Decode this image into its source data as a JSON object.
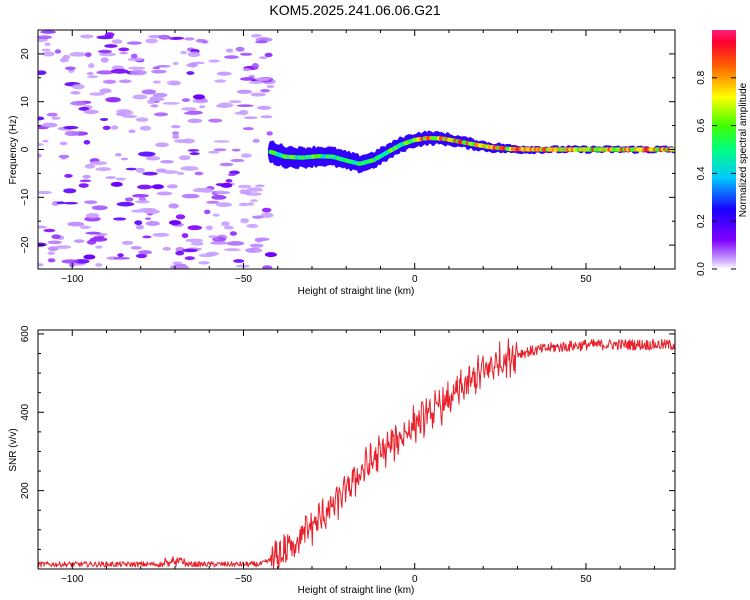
{
  "figure": {
    "title": "KOM5.2025.241.06.06.G21"
  },
  "chart_data": [
    {
      "type": "heatmap",
      "xlabel": "Height of straight line (km)",
      "ylabel": "Frequency (Hz)",
      "xlim": [
        -110,
        76
      ],
      "ylim": [
        -25,
        25
      ],
      "xticks": [
        -100,
        -50,
        0,
        50
      ],
      "yticks": [
        -20,
        -10,
        0,
        10,
        20
      ],
      "colorbar": {
        "label": "Normalized spectral amplitude",
        "ticks": [
          0.0,
          0.2,
          0.4,
          0.6,
          0.8
        ],
        "range": [
          0,
          1
        ]
      },
      "ridge": [
        {
          "x": -42,
          "y": -0.5
        },
        {
          "x": -38,
          "y": -1.5
        },
        {
          "x": -33,
          "y": -1.7
        },
        {
          "x": -28,
          "y": -1.4
        },
        {
          "x": -24,
          "y": -1.5
        },
        {
          "x": -20,
          "y": -2.3
        },
        {
          "x": -16,
          "y": -3.0
        },
        {
          "x": -12,
          "y": -2.2
        },
        {
          "x": -8,
          "y": -0.6
        },
        {
          "x": -4,
          "y": 1.0
        },
        {
          "x": 0,
          "y": 2.0
        },
        {
          "x": 4,
          "y": 2.4
        },
        {
          "x": 8,
          "y": 2.3
        },
        {
          "x": 12,
          "y": 1.8
        },
        {
          "x": 17,
          "y": 1.1
        },
        {
          "x": 22,
          "y": 0.5
        },
        {
          "x": 28,
          "y": 0.1
        },
        {
          "x": 35,
          "y": 0.0
        },
        {
          "x": 45,
          "y": 0.0
        },
        {
          "x": 60,
          "y": 0.0
        },
        {
          "x": 76,
          "y": 0.0
        }
      ]
    },
    {
      "type": "line",
      "xlabel": "Height of straight line (km)",
      "ylabel": "SNR (v/v)",
      "xlim": [
        -110,
        76
      ],
      "ylim": [
        0,
        610
      ],
      "xticks": [
        -100,
        -50,
        0,
        50
      ],
      "yticks": [
        200,
        400,
        600
      ],
      "series": [
        {
          "name": "SNR",
          "color": "#e8202a",
          "envelope": [
            {
              "x": -110,
              "y": 12
            },
            {
              "x": -70,
              "y": 12
            },
            {
              "x": -45,
              "y": 12
            },
            {
              "x": -40,
              "y": 30
            },
            {
              "x": -35,
              "y": 70
            },
            {
              "x": -30,
              "y": 110
            },
            {
              "x": -25,
              "y": 150
            },
            {
              "x": -20,
              "y": 200
            },
            {
              "x": -15,
              "y": 255
            },
            {
              "x": -10,
              "y": 295
            },
            {
              "x": -5,
              "y": 330
            },
            {
              "x": 0,
              "y": 370
            },
            {
              "x": 5,
              "y": 400
            },
            {
              "x": 10,
              "y": 430
            },
            {
              "x": 15,
              "y": 470
            },
            {
              "x": 20,
              "y": 505
            },
            {
              "x": 25,
              "y": 530
            },
            {
              "x": 30,
              "y": 550
            },
            {
              "x": 40,
              "y": 565
            },
            {
              "x": 50,
              "y": 572
            },
            {
              "x": 60,
              "y": 573
            },
            {
              "x": 76,
              "y": 572
            }
          ]
        }
      ]
    }
  ]
}
